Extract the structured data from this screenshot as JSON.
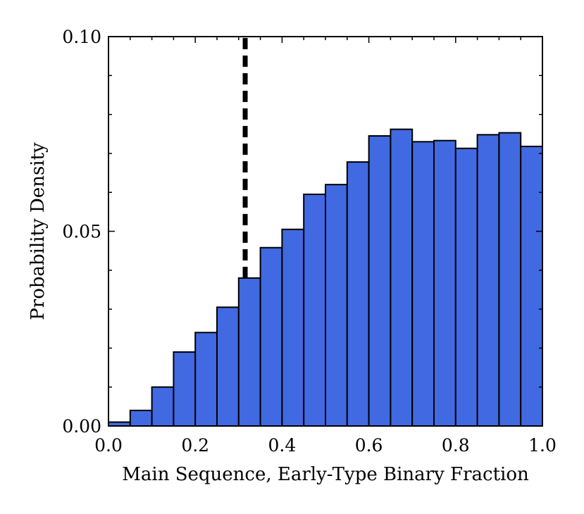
{
  "chart_data": {
    "type": "bar",
    "histogram": true,
    "xlabel": "Main Sequence, Early-Type Binary Fraction",
    "ylabel": "Probability Density",
    "xlim": [
      0.0,
      1.0
    ],
    "ylim": [
      0.0,
      0.1
    ],
    "bin_edges": [
      0.0,
      0.05,
      0.1,
      0.15,
      0.2,
      0.25,
      0.3,
      0.35,
      0.4,
      0.45,
      0.5,
      0.55,
      0.6,
      0.65,
      0.7,
      0.75,
      0.8,
      0.85,
      0.9,
      0.95,
      1.0
    ],
    "values": [
      0.001,
      0.004,
      0.01,
      0.019,
      0.024,
      0.0305,
      0.038,
      0.0458,
      0.0505,
      0.0595,
      0.062,
      0.0678,
      0.0745,
      0.0762,
      0.073,
      0.0733,
      0.0713,
      0.0748,
      0.0753,
      0.0718
    ],
    "x_ticks": [
      {
        "value": 0.0,
        "label": "0.0"
      },
      {
        "value": 0.2,
        "label": "0.2"
      },
      {
        "value": 0.4,
        "label": "0.4"
      },
      {
        "value": 0.6,
        "label": "0.6"
      },
      {
        "value": 0.8,
        "label": "0.8"
      },
      {
        "value": 1.0,
        "label": "1.0"
      }
    ],
    "y_ticks": [
      {
        "value": 0.0,
        "label": "0.00"
      },
      {
        "value": 0.05,
        "label": "0.05"
      },
      {
        "value": 0.1,
        "label": "0.10"
      }
    ],
    "minor_x_step": 0.05,
    "minor_y_step": 0.01,
    "vline": {
      "x": 0.315,
      "y_range": [
        0.038,
        0.1
      ],
      "style": "dashed",
      "color": "#000000"
    },
    "bar_color": "#4169e1",
    "edge_color": "#000000",
    "grid": false,
    "legend": false
  }
}
